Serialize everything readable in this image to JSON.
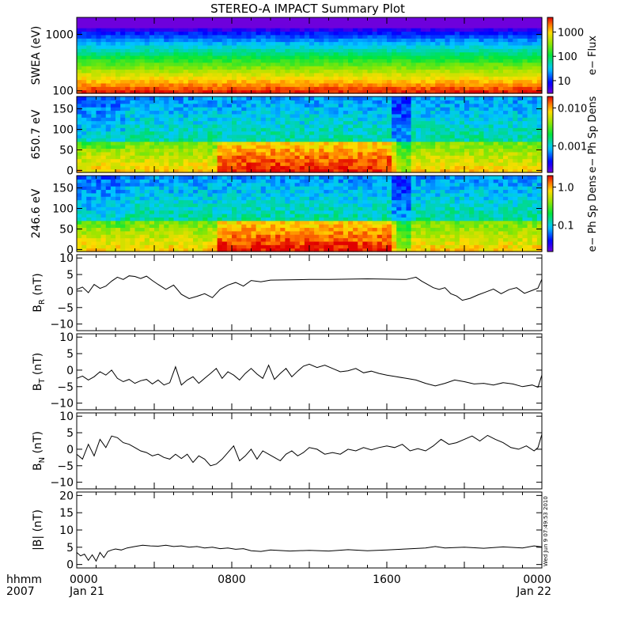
{
  "chart_data": {
    "type": "line",
    "title": "STEREO-A IMPACT Summary Plot",
    "x_axis": {
      "corner_labels": [
        "hhmm",
        "2007"
      ],
      "ticks": [
        {
          "time": "0000",
          "date": "Jan 21"
        },
        {
          "time": "0800",
          "date": ""
        },
        {
          "time": "1600",
          "date": ""
        },
        {
          "time": "0000",
          "date": "Jan 22"
        }
      ],
      "range_hours": [
        0,
        24
      ]
    },
    "stamp": "Wed Jun 9 07:49:53 2010",
    "spectrograms": [
      {
        "id": "swea",
        "ylabel": "SWEA (eV)",
        "yscale": "log",
        "ylim": [
          90,
          2000
        ],
        "yticks": [
          "1000",
          "100"
        ],
        "yticks_values": [
          1000,
          100
        ],
        "colorbar_label": "e− Flux",
        "colorbar_ticks": [
          "1000",
          "100",
          "10"
        ],
        "colorbar_values": [
          1000,
          100,
          10
        ],
        "colorbar_range": [
          3,
          4000
        ]
      },
      {
        "id": "pad650",
        "ylabel": "650.7 eV",
        "yscale": "linear",
        "ylim": [
          -5,
          180
        ],
        "yticks": [
          "150",
          "100",
          "50",
          "0"
        ],
        "yticks_values": [
          150,
          100,
          50,
          0
        ],
        "colorbar_label": "e− Ph Sp Dens",
        "colorbar_ticks": [
          "0.010",
          "0.001"
        ],
        "colorbar_values": [
          0.01,
          0.001
        ],
        "colorbar_range": [
          0.0002,
          0.02
        ]
      },
      {
        "id": "pad246",
        "ylabel": "246.6 eV",
        "yscale": "linear",
        "ylim": [
          -5,
          180
        ],
        "yticks": [
          "150",
          "100",
          "50",
          "0"
        ],
        "yticks_values": [
          150,
          100,
          50,
          0
        ],
        "colorbar_label": "e− Ph Sp Dens",
        "colorbar_ticks": [
          "1.0",
          "0.1"
        ],
        "colorbar_values": [
          1.0,
          0.1
        ],
        "colorbar_range": [
          0.02,
          2
        ]
      }
    ],
    "series": [
      {
        "id": "br",
        "ylabel": "B",
        "ylabel_sub": "R",
        "ylabel_unit": "(nT)",
        "ylim": [
          -12,
          11
        ],
        "yticks": [
          "10",
          "5",
          "0",
          "−5",
          "−10"
        ],
        "yticks_values": [
          10,
          5,
          0,
          -5,
          -10
        ],
        "x": [
          0,
          0.3,
          0.6,
          0.9,
          1.2,
          1.5,
          1.8,
          2.1,
          2.4,
          2.7,
          3.0,
          3.3,
          3.6,
          3.9,
          4.2,
          4.6,
          5.0,
          5.4,
          5.8,
          6.2,
          6.6,
          7.0,
          7.4,
          7.8,
          8.2,
          8.6,
          9.0,
          9.5,
          10,
          11,
          12,
          13,
          14,
          15,
          16,
          17,
          17.5,
          17.8,
          18.1,
          18.4,
          18.7,
          19.0,
          19.3,
          19.6,
          19.9,
          20.3,
          20.7,
          21.1,
          21.5,
          21.9,
          22.3,
          22.7,
          23.1,
          23.5,
          23.8,
          24
        ],
        "values": [
          0.5,
          1.2,
          -0.5,
          2.0,
          0.8,
          1.5,
          3.0,
          4.2,
          3.5,
          4.6,
          4.4,
          3.8,
          4.5,
          3.2,
          2.0,
          0.5,
          1.8,
          -1.0,
          -2.3,
          -1.6,
          -0.8,
          -2.0,
          0.5,
          1.8,
          2.6,
          1.5,
          3.2,
          2.8,
          3.3,
          3.4,
          3.5,
          3.5,
          3.6,
          3.7,
          3.6,
          3.5,
          4.2,
          3.0,
          2.0,
          1.0,
          0.5,
          1.0,
          -0.8,
          -1.5,
          -2.8,
          -2.2,
          -1.2,
          -0.3,
          0.6,
          -0.8,
          0.4,
          1.0,
          -0.7,
          0.2,
          0.9,
          3.6
        ]
      },
      {
        "id": "bt",
        "ylabel": "B",
        "ylabel_sub": "T",
        "ylabel_unit": "(nT)",
        "ylim": [
          -12,
          11
        ],
        "yticks": [
          "10",
          "5",
          "0",
          "−5",
          "−10"
        ],
        "yticks_values": [
          10,
          5,
          0,
          -5,
          -10
        ],
        "x": [
          0,
          0.3,
          0.6,
          0.9,
          1.2,
          1.5,
          1.8,
          2.1,
          2.4,
          2.7,
          3.0,
          3.3,
          3.6,
          3.9,
          4.2,
          4.5,
          4.8,
          5.1,
          5.4,
          5.7,
          6.0,
          6.3,
          6.6,
          6.9,
          7.2,
          7.5,
          7.8,
          8.1,
          8.4,
          8.7,
          9.0,
          9.3,
          9.6,
          9.9,
          10.2,
          10.5,
          10.8,
          11.1,
          11.4,
          11.7,
          12.0,
          12.4,
          12.8,
          13.2,
          13.6,
          14.0,
          14.4,
          14.8,
          15.2,
          15.6,
          16.0,
          16.5,
          17.0,
          17.5,
          18.0,
          18.5,
          19.0,
          19.5,
          20.0,
          20.5,
          21.0,
          21.5,
          22.0,
          22.5,
          23.0,
          23.5,
          23.8,
          24
        ],
        "values": [
          -2.5,
          -1.8,
          -3.0,
          -2.0,
          -0.5,
          -1.5,
          0.0,
          -2.5,
          -3.5,
          -2.8,
          -4.0,
          -3.2,
          -2.8,
          -4.2,
          -3.0,
          -4.5,
          -3.8,
          1.0,
          -4.5,
          -3.0,
          -2.0,
          -4.0,
          -2.5,
          -1.0,
          0.5,
          -2.5,
          -0.5,
          -1.5,
          -3.0,
          -1.0,
          0.5,
          -1.2,
          -2.5,
          1.5,
          -2.8,
          -1.0,
          0.5,
          -2.0,
          -0.3,
          1.2,
          1.8,
          0.8,
          1.5,
          0.5,
          -0.5,
          -0.2,
          0.5,
          -0.8,
          -0.3,
          -1.0,
          -1.5,
          -2.0,
          -2.5,
          -3.0,
          -4.0,
          -4.8,
          -4.0,
          -3.0,
          -3.5,
          -4.2,
          -4.0,
          -4.5,
          -3.8,
          -4.2,
          -5.0,
          -4.5,
          -5.2,
          -1.5
        ]
      },
      {
        "id": "bn",
        "ylabel": "B",
        "ylabel_sub": "N",
        "ylabel_unit": "(nT)",
        "ylim": [
          -12,
          11
        ],
        "yticks": [
          "10",
          "5",
          "0",
          "−5",
          "−10"
        ],
        "yticks_values": [
          10,
          5,
          0,
          -5,
          -10
        ],
        "x": [
          0,
          0.3,
          0.6,
          0.9,
          1.2,
          1.5,
          1.8,
          2.1,
          2.4,
          2.7,
          3.0,
          3.3,
          3.6,
          3.9,
          4.2,
          4.5,
          4.8,
          5.1,
          5.4,
          5.7,
          6.0,
          6.3,
          6.6,
          6.9,
          7.2,
          7.5,
          7.8,
          8.1,
          8.4,
          8.7,
          9.0,
          9.3,
          9.6,
          9.9,
          10.2,
          10.5,
          10.8,
          11.1,
          11.4,
          11.7,
          12.0,
          12.4,
          12.8,
          13.2,
          13.6,
          14.0,
          14.4,
          14.8,
          15.2,
          15.6,
          16.0,
          16.4,
          16.8,
          17.2,
          17.6,
          18.0,
          18.4,
          18.8,
          19.2,
          19.6,
          20.0,
          20.4,
          20.8,
          21.2,
          21.6,
          22.0,
          22.4,
          22.8,
          23.2,
          23.6,
          23.8,
          24
        ],
        "values": [
          -1.5,
          -3.0,
          1.5,
          -2.0,
          3.0,
          0.5,
          4.0,
          3.5,
          2.0,
          1.5,
          0.5,
          -0.5,
          -1.0,
          -2.0,
          -1.5,
          -2.5,
          -3.0,
          -1.5,
          -2.8,
          -1.5,
          -4.0,
          -2.0,
          -3.0,
          -5.0,
          -4.5,
          -3.0,
          -1.0,
          1.0,
          -3.5,
          -2.0,
          0.0,
          -3.0,
          -0.5,
          -1.5,
          -2.5,
          -3.5,
          -1.5,
          -0.5,
          -2.0,
          -1.0,
          0.5,
          0.0,
          -1.5,
          -1.0,
          -1.5,
          0.0,
          -0.5,
          0.5,
          -0.2,
          0.5,
          1.0,
          0.5,
          1.5,
          -0.5,
          0.2,
          -0.5,
          1.0,
          3.0,
          1.5,
          2.0,
          3.0,
          4.0,
          2.5,
          4.2,
          3.0,
          2.0,
          0.5,
          0.0,
          1.0,
          -0.5,
          0.5,
          4.5
        ]
      },
      {
        "id": "babs",
        "ylabel": "|B|",
        "ylabel_sub": "",
        "ylabel_unit": "(nT)",
        "ylim": [
          -1,
          21
        ],
        "yticks": [
          "20",
          "15",
          "10",
          "5",
          "0"
        ],
        "yticks_values": [
          20,
          15,
          10,
          5,
          0
        ],
        "x": [
          0,
          0.2,
          0.4,
          0.6,
          0.8,
          1.0,
          1.2,
          1.4,
          1.6,
          1.8,
          2.0,
          2.3,
          2.6,
          3.0,
          3.4,
          3.8,
          4.2,
          4.6,
          5.0,
          5.4,
          5.8,
          6.2,
          6.6,
          7.0,
          7.4,
          7.8,
          8.2,
          8.6,
          9.0,
          9.5,
          10,
          11,
          12,
          13,
          14,
          15,
          16,
          17,
          18,
          18.5,
          19,
          20,
          21,
          22,
          23,
          23.6,
          24
        ],
        "values": [
          3.5,
          2.5,
          3.0,
          1.2,
          2.8,
          1.0,
          3.5,
          2.0,
          3.8,
          4.2,
          4.5,
          4.2,
          4.8,
          5.2,
          5.6,
          5.4,
          5.3,
          5.6,
          5.2,
          5.4,
          5.0,
          5.2,
          4.8,
          5.0,
          4.6,
          4.8,
          4.4,
          4.6,
          4.0,
          3.8,
          4.2,
          3.9,
          4.1,
          3.9,
          4.3,
          4.0,
          4.2,
          4.5,
          4.8,
          5.2,
          4.8,
          5.0,
          4.7,
          5.1,
          4.8,
          5.4,
          5.1
        ]
      }
    ]
  }
}
